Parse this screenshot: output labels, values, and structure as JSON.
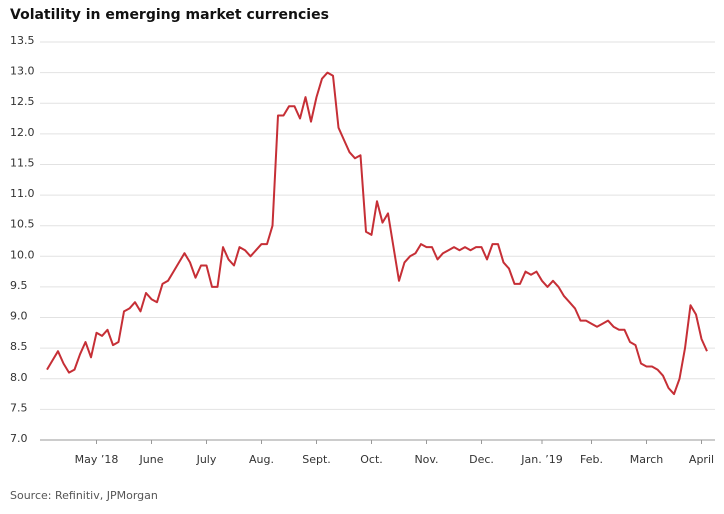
{
  "chart_data": {
    "type": "line",
    "title": "Volatility in emerging market currencies",
    "source": "Source: Refinitiv, JPMorgan",
    "categories": [
      null,
      null,
      null,
      null,
      null,
      null,
      null,
      null,
      null,
      "May ’18",
      null,
      null,
      null,
      null,
      null,
      null,
      null,
      null,
      null,
      "June",
      null,
      null,
      null,
      null,
      null,
      null,
      null,
      null,
      null,
      "July",
      null,
      null,
      null,
      null,
      null,
      null,
      null,
      null,
      null,
      "Aug.",
      null,
      null,
      null,
      null,
      null,
      null,
      null,
      null,
      null,
      "Sept.",
      null,
      null,
      null,
      null,
      null,
      null,
      null,
      null,
      null,
      "Oct.",
      null,
      null,
      null,
      null,
      null,
      null,
      null,
      null,
      null,
      "Nov.",
      null,
      null,
      null,
      null,
      null,
      null,
      null,
      null,
      null,
      "Dec.",
      null,
      null,
      null,
      null,
      null,
      null,
      null,
      null,
      null,
      null,
      "Jan. ’19",
      null,
      null,
      null,
      null,
      null,
      null,
      null,
      null,
      "Feb.",
      null,
      null,
      null,
      null,
      null,
      null,
      null,
      null,
      null,
      "March",
      null,
      null,
      null,
      null,
      null,
      null,
      null,
      null,
      null,
      "April",
      null
    ],
    "series": [
      {
        "name": "Volatility",
        "color": "#c62f36",
        "values": [
          8.15,
          8.3,
          8.45,
          8.25,
          8.1,
          8.15,
          8.4,
          8.6,
          8.35,
          8.75,
          8.7,
          8.8,
          8.55,
          8.6,
          9.1,
          9.15,
          9.25,
          9.1,
          9.4,
          9.3,
          9.25,
          9.55,
          9.6,
          9.75,
          9.9,
          10.05,
          9.9,
          9.65,
          9.85,
          9.85,
          9.5,
          9.5,
          10.15,
          9.95,
          9.85,
          10.15,
          10.1,
          10.0,
          10.1,
          10.2,
          10.2,
          10.5,
          12.3,
          12.3,
          12.45,
          12.45,
          12.25,
          12.6,
          12.2,
          12.6,
          12.9,
          13.0,
          12.95,
          12.1,
          11.9,
          11.7,
          11.6,
          11.65,
          10.4,
          10.35,
          10.9,
          10.55,
          10.7,
          10.15,
          9.6,
          9.9,
          10.0,
          10.05,
          10.2,
          10.15,
          10.15,
          9.95,
          10.05,
          10.1,
          10.15,
          10.1,
          10.15,
          10.1,
          10.15,
          10.15,
          9.95,
          10.2,
          10.2,
          9.9,
          9.8,
          9.55,
          9.55,
          9.75,
          9.7,
          9.75,
          9.6,
          9.5,
          9.6,
          9.5,
          9.35,
          9.25,
          9.15,
          8.95,
          8.95,
          8.9,
          8.85,
          8.9,
          8.95,
          8.85,
          8.8,
          8.8,
          8.6,
          8.55,
          8.25,
          8.2,
          8.2,
          8.15,
          8.05,
          7.85,
          7.75,
          8.0,
          8.5,
          9.2,
          9.05,
          8.65,
          8.45
        ]
      }
    ],
    "ylim": [
      7,
      13.5
    ],
    "yticks": [
      {
        "value": 7,
        "label": "7.0"
      },
      7.5,
      {
        "value": 8,
        "label": "8.0"
      },
      8.5,
      {
        "value": 9,
        "label": "9.0"
      },
      9.5,
      {
        "value": 10,
        "label": "10.0"
      },
      10.5,
      {
        "value": 11,
        "label": "11.0"
      },
      11.5,
      {
        "value": 12,
        "label": "12.0"
      },
      12.5,
      {
        "value": 13,
        "label": "13.0"
      },
      13.5
    ],
    "grid": true
  }
}
